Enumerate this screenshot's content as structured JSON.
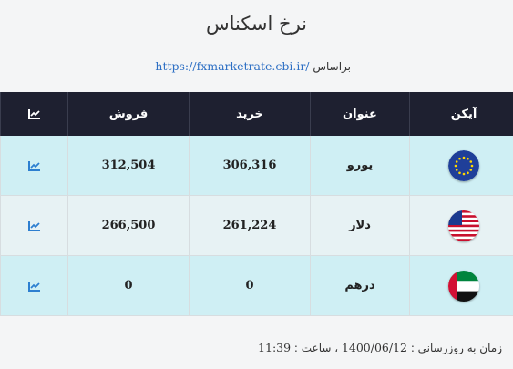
{
  "title": "نرخ اسکناس",
  "source": {
    "prefix": "براساس",
    "link": "https://fxmarketrate.cbi.ir/"
  },
  "table": {
    "headers": {
      "icon": "آیکن",
      "name": "عنوان",
      "buy": "خرید",
      "sell": "فروش",
      "chart": "chart-line-icon"
    },
    "rows": [
      {
        "flag": "eu-flag-icon",
        "name": "یورو",
        "buy": "306,316",
        "sell": "312,504"
      },
      {
        "flag": "us-flag-icon",
        "name": "دلار",
        "buy": "261,224",
        "sell": "266,500"
      },
      {
        "flag": "uae-flag-icon",
        "name": "درهم",
        "buy": "0",
        "sell": "0"
      }
    ]
  },
  "footer": {
    "label": "زمان به روزرسانی :",
    "date": "1400/06/12",
    "time_label": "، ساعت :",
    "time": "11:39"
  },
  "colors": {
    "header_bg": "#1e2030",
    "row_odd": "#cfeff4",
    "row_even": "#e7f2f4",
    "link": "#2d6fc4",
    "icon": "#2d7fd0"
  }
}
